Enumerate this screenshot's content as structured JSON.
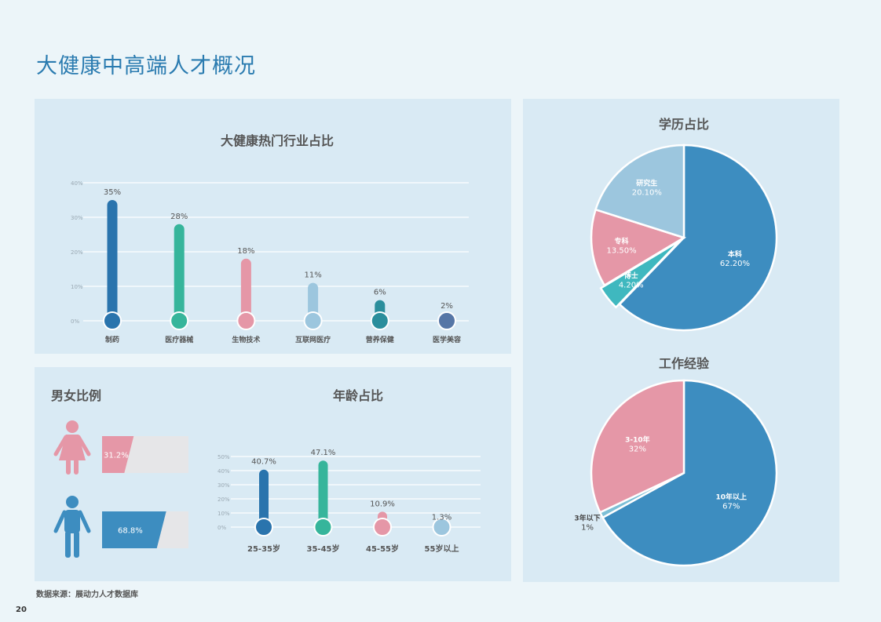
{
  "page": {
    "title": "大健康中高端人才概况",
    "source": "数据来源：展动力人才数据库",
    "page_number": "20"
  },
  "chart_data": [
    {
      "id": "industry",
      "type": "bar",
      "title": "大健康热门行业占比",
      "categories": [
        "制药",
        "医疗器械",
        "生物技术",
        "互联网医疗",
        "营养保健",
        "医学美容"
      ],
      "values": [
        35,
        28,
        18,
        11,
        6,
        2
      ],
      "value_labels": [
        "35%",
        "28%",
        "18%",
        "11%",
        "6%",
        "2%"
      ],
      "colors": [
        "#2a74ad",
        "#36b59b",
        "#e597a7",
        "#9cc6de",
        "#2b8e9c",
        "#5676a6"
      ],
      "ylim": [
        0,
        40
      ],
      "yticks": [
        "0%",
        "10%",
        "20%",
        "30%",
        "40%"
      ],
      "grid": true
    },
    {
      "id": "age",
      "type": "bar",
      "title": "年龄占比",
      "categories": [
        "25-35岁",
        "35-45岁",
        "45-55岁",
        "55岁以上"
      ],
      "values": [
        40.7,
        47.1,
        10.9,
        1.3
      ],
      "value_labels": [
        "40.7%",
        "47.1%",
        "10.9%",
        "1.3%"
      ],
      "colors": [
        "#2a74ad",
        "#36b59b",
        "#e597a7",
        "#9cc6de"
      ],
      "ylim": [
        0,
        50
      ],
      "yticks": [
        "0%",
        "10%",
        "20%",
        "30%",
        "40%",
        "50%"
      ],
      "grid": true
    },
    {
      "id": "gender",
      "type": "bar",
      "title": "男女比例",
      "categories": [
        "女",
        "男"
      ],
      "values": [
        31.2,
        68.8
      ],
      "value_labels": [
        "31.2%",
        "68.8%"
      ],
      "colors": [
        "#e597a7",
        "#3d8dc0"
      ],
      "icons": [
        "female-icon",
        "male-icon"
      ]
    },
    {
      "id": "education",
      "type": "pie",
      "title": "学历占比",
      "slices": [
        {
          "label": "本科",
          "value": 62.2,
          "value_label": "62.20%",
          "color": "#3d8dc0"
        },
        {
          "label": "博士",
          "value": 4.2,
          "value_label": "4.20%",
          "color": "#3fb8bf"
        },
        {
          "label": "专科",
          "value": 13.5,
          "value_label": "13.50%",
          "color": "#e597a7"
        },
        {
          "label": "研究生",
          "value": 20.1,
          "value_label": "20.10%",
          "color": "#9cc6de"
        }
      ]
    },
    {
      "id": "experience",
      "type": "pie",
      "title": "工作经验",
      "slices": [
        {
          "label": "10年以上",
          "value": 67,
          "value_label": "67%",
          "color": "#3d8dc0"
        },
        {
          "label": "3年以下",
          "value": 1,
          "value_label": "1%",
          "color": "#7dbfd6"
        },
        {
          "label": "3-10年",
          "value": 32,
          "value_label": "32%",
          "color": "#e597a7"
        }
      ]
    }
  ]
}
